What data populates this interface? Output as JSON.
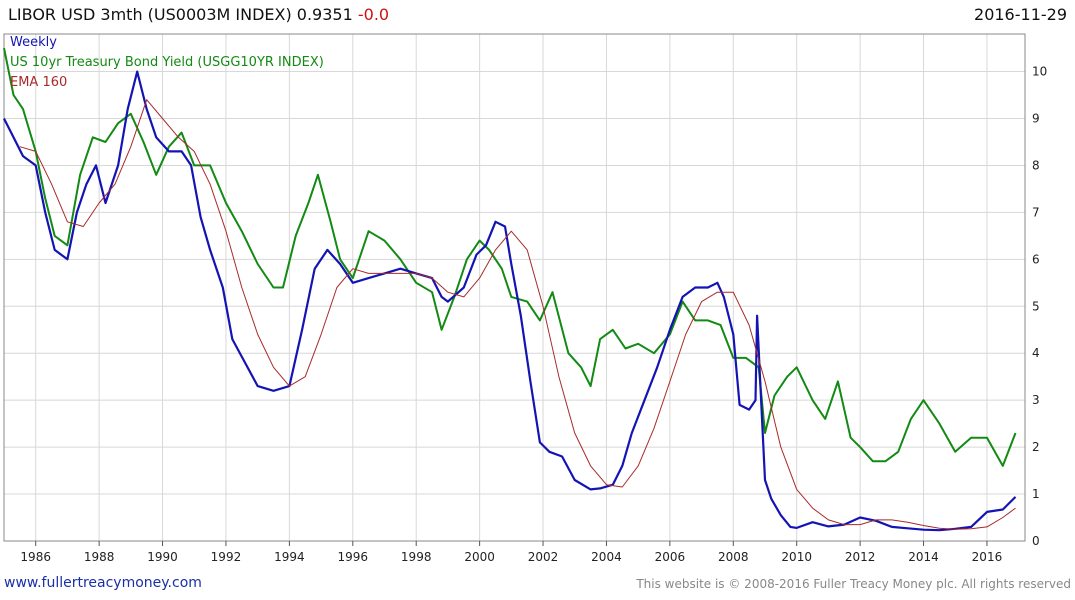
{
  "header": {
    "title": "LIBOR USD 3mth  (US0003M INDEX) 0.9351",
    "change": "-0.0",
    "date": "2016-11-29"
  },
  "footer": {
    "site": "www.fullertreacymoney.com",
    "copyright": "This website is © 2008-2016 Fuller Treacy Money plc. All rights reserved"
  },
  "colors": {
    "libor": "#1414b4",
    "treasury": "#138a13",
    "ema": "#a82a2a",
    "grid": "#d8d8d8"
  },
  "chart_data": {
    "type": "line",
    "legend": [
      "Weekly",
      "US 10yr Treasury Bond Yield (USGG10YR INDEX)",
      "EMA 160"
    ],
    "legend_position": "top-left",
    "grid": true,
    "xlim": [
      1985.0,
      2017.2
    ],
    "ylim": [
      0,
      10.8
    ],
    "x_ticks": [
      "1986",
      "1988",
      "1990",
      "1992",
      "1994",
      "1996",
      "1998",
      "2000",
      "2002",
      "2004",
      "2006",
      "2008",
      "2010",
      "2012",
      "2014",
      "2016"
    ],
    "y_ticks": [
      0,
      1,
      2,
      3,
      4,
      5,
      6,
      7,
      8,
      9,
      10
    ],
    "series": [
      {
        "name": "Weekly",
        "x": [
          1985.0,
          1985.3,
          1985.6,
          1986.0,
          1986.3,
          1986.6,
          1987.0,
          1987.3,
          1987.6,
          1987.9,
          1988.2,
          1988.6,
          1988.9,
          1989.2,
          1989.5,
          1989.8,
          1990.2,
          1990.6,
          1990.9,
          1991.2,
          1991.5,
          1991.9,
          1992.2,
          1992.6,
          1993.0,
          1993.5,
          1994.0,
          1994.4,
          1994.8,
          1995.2,
          1995.6,
          1996.0,
          1996.5,
          1997.0,
          1997.5,
          1998.0,
          1998.5,
          1998.8,
          1999.0,
          1999.5,
          1999.9,
          2000.2,
          2000.5,
          2000.8,
          2001.0,
          2001.3,
          2001.6,
          2001.9,
          2002.2,
          2002.6,
          2003.0,
          2003.5,
          2003.8,
          2004.2,
          2004.5,
          2004.8,
          2005.2,
          2005.6,
          2006.0,
          2006.4,
          2006.8,
          2007.2,
          2007.5,
          2007.7,
          2008.0,
          2008.2,
          2008.5,
          2008.7,
          2008.75,
          2008.85,
          2009.0,
          2009.2,
          2009.5,
          2009.8,
          2010.0,
          2010.5,
          2011.0,
          2011.5,
          2012.0,
          2012.5,
          2013.0,
          2013.5,
          2014.0,
          2014.5,
          2015.0,
          2015.5,
          2016.0,
          2016.5,
          2016.9
        ],
        "y": [
          9.0,
          8.6,
          8.2,
          8.0,
          7.0,
          6.2,
          6.0,
          7.0,
          7.6,
          8.0,
          7.2,
          8.0,
          9.2,
          10.0,
          9.2,
          8.6,
          8.3,
          8.3,
          8.0,
          6.9,
          6.2,
          5.4,
          4.3,
          3.8,
          3.3,
          3.2,
          3.3,
          4.5,
          5.8,
          6.2,
          5.9,
          5.5,
          5.6,
          5.7,
          5.8,
          5.7,
          5.6,
          5.2,
          5.1,
          5.4,
          6.1,
          6.3,
          6.8,
          6.7,
          5.9,
          4.8,
          3.4,
          2.1,
          1.9,
          1.8,
          1.3,
          1.1,
          1.12,
          1.2,
          1.6,
          2.3,
          3.0,
          3.7,
          4.5,
          5.2,
          5.4,
          5.4,
          5.5,
          5.2,
          4.4,
          2.9,
          2.8,
          3.0,
          4.8,
          3.4,
          1.3,
          0.9,
          0.55,
          0.3,
          0.28,
          0.4,
          0.31,
          0.35,
          0.5,
          0.43,
          0.3,
          0.27,
          0.24,
          0.23,
          0.26,
          0.3,
          0.62,
          0.67,
          0.94
        ]
      },
      {
        "name": "US 10yr Treasury Bond Yield (USGG10YR INDEX)",
        "x": [
          1985.0,
          1985.3,
          1985.6,
          1986.0,
          1986.3,
          1986.6,
          1987.0,
          1987.4,
          1987.8,
          1988.2,
          1988.6,
          1989.0,
          1989.4,
          1989.8,
          1990.2,
          1990.6,
          1991.0,
          1991.5,
          1992.0,
          1992.5,
          1993.0,
          1993.5,
          1993.8,
          1994.2,
          1994.6,
          1994.9,
          1995.3,
          1995.6,
          1996.0,
          1996.5,
          1997.0,
          1997.5,
          1998.0,
          1998.5,
          1998.8,
          1999.2,
          1999.6,
          2000.0,
          2000.3,
          2000.7,
          2001.0,
          2001.5,
          2001.9,
          2002.3,
          2002.8,
          2003.2,
          2003.5,
          2003.8,
          2004.2,
          2004.6,
          2005.0,
          2005.5,
          2006.0,
          2006.4,
          2006.8,
          2007.2,
          2007.6,
          2008.0,
          2008.4,
          2008.8,
          2009.0,
          2009.3,
          2009.7,
          2010.0,
          2010.5,
          2010.9,
          2011.3,
          2011.7,
          2012.0,
          2012.4,
          2012.8,
          2013.2,
          2013.6,
          2014.0,
          2014.5,
          2015.0,
          2015.5,
          2016.0,
          2016.5,
          2016.9
        ],
        "y": [
          10.5,
          9.5,
          9.2,
          8.3,
          7.3,
          6.5,
          6.3,
          7.8,
          8.6,
          8.5,
          8.9,
          9.1,
          8.5,
          7.8,
          8.4,
          8.7,
          8.0,
          8.0,
          7.2,
          6.6,
          5.9,
          5.4,
          5.4,
          6.5,
          7.2,
          7.8,
          6.8,
          6.0,
          5.6,
          6.6,
          6.4,
          6.0,
          5.5,
          5.3,
          4.5,
          5.2,
          6.0,
          6.4,
          6.2,
          5.8,
          5.2,
          5.1,
          4.7,
          5.3,
          4.0,
          3.7,
          3.3,
          4.3,
          4.5,
          4.1,
          4.2,
          4.0,
          4.4,
          5.1,
          4.7,
          4.7,
          4.6,
          3.9,
          3.9,
          3.7,
          2.3,
          3.1,
          3.5,
          3.7,
          3.0,
          2.6,
          3.4,
          2.2,
          2.0,
          1.7,
          1.7,
          1.9,
          2.6,
          3.0,
          2.5,
          1.9,
          2.2,
          2.2,
          1.6,
          2.3
        ]
      },
      {
        "name": "EMA 160",
        "x": [
          1985.5,
          1986.0,
          1986.5,
          1987.0,
          1987.5,
          1988.0,
          1988.5,
          1989.0,
          1989.5,
          1990.0,
          1990.5,
          1991.0,
          1991.5,
          1992.0,
          1992.5,
          1993.0,
          1993.5,
          1994.0,
          1994.5,
          1995.0,
          1995.5,
          1996.0,
          1996.5,
          1997.0,
          1997.5,
          1998.0,
          1998.5,
          1999.0,
          1999.5,
          2000.0,
          2000.5,
          2001.0,
          2001.5,
          2002.0,
          2002.5,
          2003.0,
          2003.5,
          2004.0,
          2004.5,
          2005.0,
          2005.5,
          2006.0,
          2006.5,
          2007.0,
          2007.5,
          2008.0,
          2008.5,
          2009.0,
          2009.5,
          2010.0,
          2010.5,
          2011.0,
          2011.5,
          2012.0,
          2012.5,
          2013.0,
          2013.5,
          2014.0,
          2014.5,
          2015.0,
          2015.5,
          2016.0,
          2016.5,
          2016.9
        ],
        "y": [
          8.4,
          8.3,
          7.6,
          6.8,
          6.7,
          7.2,
          7.6,
          8.4,
          9.4,
          9.0,
          8.6,
          8.3,
          7.6,
          6.6,
          5.4,
          4.4,
          3.7,
          3.3,
          3.5,
          4.4,
          5.4,
          5.8,
          5.7,
          5.7,
          5.7,
          5.7,
          5.6,
          5.3,
          5.2,
          5.6,
          6.2,
          6.6,
          6.2,
          5.0,
          3.5,
          2.3,
          1.6,
          1.2,
          1.15,
          1.6,
          2.4,
          3.4,
          4.4,
          5.1,
          5.3,
          5.3,
          4.6,
          3.4,
          2.0,
          1.1,
          0.7,
          0.45,
          0.35,
          0.35,
          0.45,
          0.45,
          0.4,
          0.33,
          0.27,
          0.25,
          0.26,
          0.3,
          0.5,
          0.7
        ]
      }
    ]
  }
}
